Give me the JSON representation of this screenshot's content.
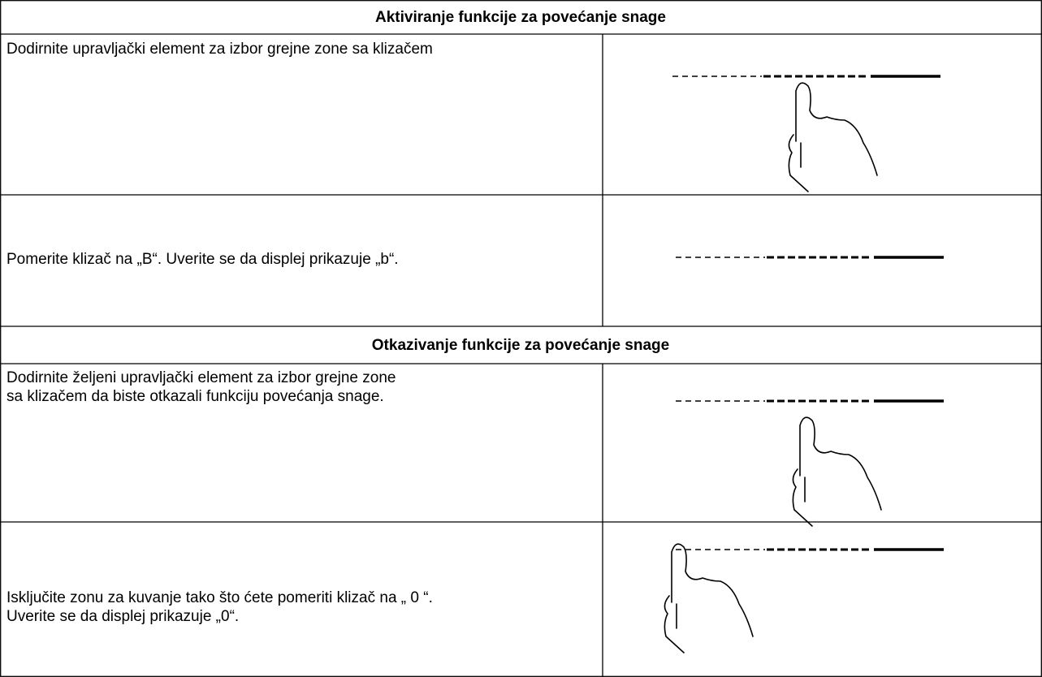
{
  "sections": [
    {
      "title": "Aktiviranje funkcije za povećanje snage",
      "rows": [
        {
          "lines": [
            "Dodirnite upravljački element za izbor grejne zone sa klizačem"
          ]
        },
        {
          "lines": [
            "Pomerite klizač na „B“. Uverite se da displej prikazuje „b“."
          ]
        }
      ]
    },
    {
      "title": "Otkazivanje funkcije za povećanje snage",
      "rows": [
        {
          "lines": [
            "Dodirnite željeni upravljački element za izbor grejne zone",
            "sa klizačem da biste otkazali funkciju povećanja snage."
          ]
        },
        {
          "lines": [
            "Isključite zonu za kuvanje tako što ćete pomeriti klizač na „ 0 “.",
            "Uverite se da displej prikazuje „0“."
          ]
        }
      ]
    }
  ]
}
